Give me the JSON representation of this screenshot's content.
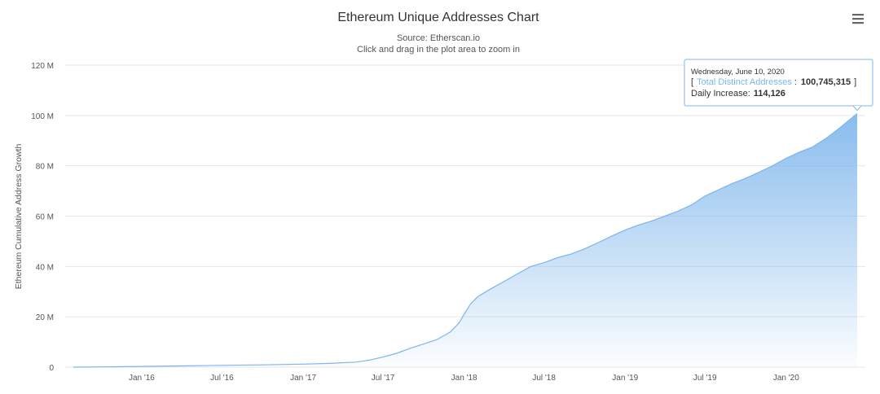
{
  "chart_data": {
    "type": "area",
    "title": "Ethereum Unique Addresses Chart",
    "subtitle_source": "Source: Etherscan.io",
    "subtitle_hint": "Click and drag in the plot area to zoom in",
    "ylabel": "Ethereum Cumulative Address Growth",
    "xlabel": "",
    "ylim": [
      0,
      120000000
    ],
    "y_ticks": [
      "0",
      "20 M",
      "40 M",
      "60 M",
      "80 M",
      "100 M",
      "120 M"
    ],
    "x_ticks": [
      "Jan '16",
      "Jul '16",
      "Jan '17",
      "Jul '17",
      "Jan '18",
      "Jul '18",
      "Jan '19",
      "Jul '19",
      "Jan '20"
    ],
    "grid": true,
    "series_color": "#7cb5ec",
    "x_start": "2015-07-30",
    "x": [
      "2015-07-30",
      "2015-10-01",
      "2016-01-01",
      "2016-04-01",
      "2016-07-01",
      "2016-10-01",
      "2017-01-01",
      "2017-03-01",
      "2017-05-01",
      "2017-06-01",
      "2017-07-01",
      "2017-08-01",
      "2017-09-01",
      "2017-10-01",
      "2017-11-01",
      "2017-12-01",
      "2017-12-20",
      "2018-01-01",
      "2018-01-15",
      "2018-02-01",
      "2018-03-01",
      "2018-04-01",
      "2018-05-01",
      "2018-06-01",
      "2018-07-01",
      "2018-08-01",
      "2018-09-01",
      "2018-10-01",
      "2018-11-01",
      "2018-12-01",
      "2019-01-01",
      "2019-02-01",
      "2019-03-01",
      "2019-04-01",
      "2019-05-01",
      "2019-06-01",
      "2019-07-01",
      "2019-08-01",
      "2019-09-01",
      "2019-10-01",
      "2019-11-01",
      "2019-12-01",
      "2020-01-01",
      "2020-02-01",
      "2020-03-01",
      "2020-04-01",
      "2020-05-01",
      "2020-06-10"
    ],
    "values": [
      0,
      100000,
      300000,
      500000,
      700000,
      900000,
      1200000,
      1500000,
      2000000,
      2800000,
      4000000,
      5500000,
      7500000,
      9200000,
      11000000,
      14000000,
      17500000,
      21000000,
      25000000,
      28000000,
      31000000,
      34000000,
      37000000,
      40000000,
      41500000,
      43500000,
      45000000,
      47000000,
      49500000,
      52000000,
      54500000,
      56500000,
      58000000,
      60000000,
      62000000,
      64500000,
      68000000,
      70500000,
      73000000,
      75000000,
      77500000,
      80000000,
      83000000,
      85500000,
      87500000,
      91000000,
      95000000,
      100745315
    ],
    "tooltip": {
      "date": "Wednesday, June 10, 2020",
      "bracket_open": "[",
      "series_name": "Total Distinct Addresses",
      "separator": ":",
      "value": "100,745,315",
      "bracket_close": "]",
      "daily_label": "Daily Increase:",
      "daily_value": "114,126"
    }
  },
  "menu": {
    "icon": "hamburger-menu-icon"
  }
}
